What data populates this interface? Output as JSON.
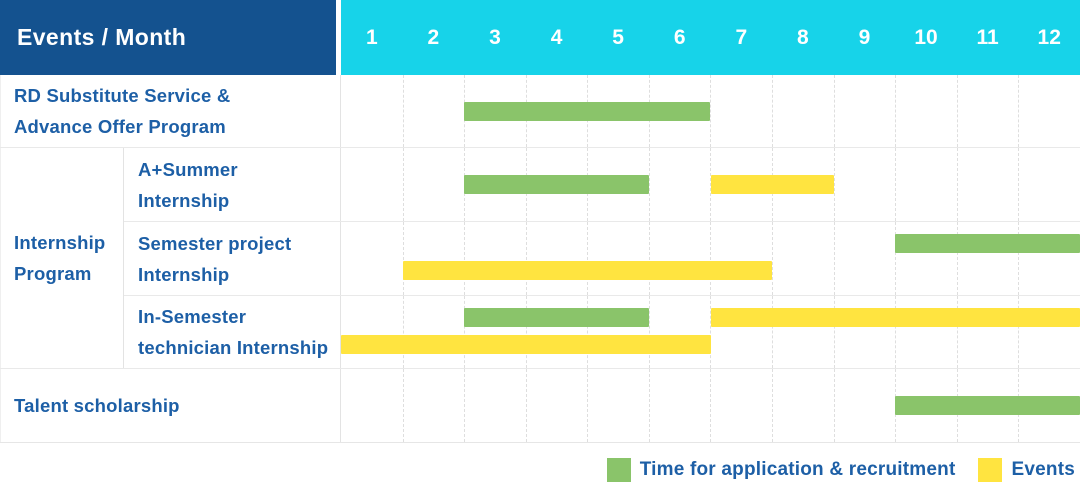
{
  "colors": {
    "header_bg": "#14528f",
    "months_bg": "#17d3e9",
    "green": "#8ac46a",
    "yellow": "#ffe440",
    "label_text": "#1d5fa6",
    "header_text": "#ffffff"
  },
  "header": {
    "title": "Events / Month"
  },
  "legend": [
    {
      "key": "green",
      "label": "Time for application & recruitment"
    },
    {
      "key": "yellow",
      "label": "Events"
    }
  ],
  "chart_data": {
    "type": "gantt",
    "title": "Events / Month",
    "x_axis_unit": "Month",
    "months": [
      1,
      2,
      3,
      4,
      5,
      6,
      7,
      8,
      9,
      10,
      11,
      12
    ],
    "series_legend": [
      {
        "key": "green",
        "label": "Time for application & recruitment"
      },
      {
        "key": "yellow",
        "label": "Events"
      }
    ],
    "rows": [
      {
        "group": "",
        "label": "RD Substitute Service & Advance Offer Program",
        "label_lines": "RD Substitute Service &\nAdvance Offer Program",
        "bars": [
          {
            "series": "green",
            "start_month": 3,
            "end_month": 6,
            "lane": "center"
          }
        ]
      },
      {
        "group": "Internship Program",
        "label": "A+Summer Internship",
        "label_lines": "A+Summer\nInternship",
        "bars": [
          {
            "series": "green",
            "start_month": 3,
            "end_month": 5,
            "lane": "center"
          },
          {
            "series": "yellow",
            "start_month": 7,
            "end_month": 8,
            "lane": "center"
          }
        ]
      },
      {
        "group": "Internship Program",
        "label": "Semester project Internship",
        "label_lines": "Semester project\nInternship",
        "bars": [
          {
            "series": "green",
            "start_month": 10,
            "end_month": 12,
            "lane": "top"
          },
          {
            "series": "yellow",
            "start_month": 2,
            "end_month": 7,
            "lane": "bottom"
          }
        ]
      },
      {
        "group": "Internship Program",
        "label": "In-Semester technician Internship",
        "label_lines": "In-Semester\ntechnician Internship",
        "bars": [
          {
            "series": "green",
            "start_month": 3,
            "end_month": 5,
            "lane": "top"
          },
          {
            "series": "yellow",
            "start_month": 7,
            "end_month": 12,
            "lane": "top"
          },
          {
            "series": "yellow",
            "start_month": 1,
            "end_month": 6,
            "lane": "bottom"
          }
        ]
      },
      {
        "group": "",
        "label": "Talent scholarship",
        "label_lines": "Talent scholarship",
        "bars": [
          {
            "series": "green",
            "start_month": 10,
            "end_month": 12,
            "lane": "center"
          }
        ]
      }
    ]
  }
}
